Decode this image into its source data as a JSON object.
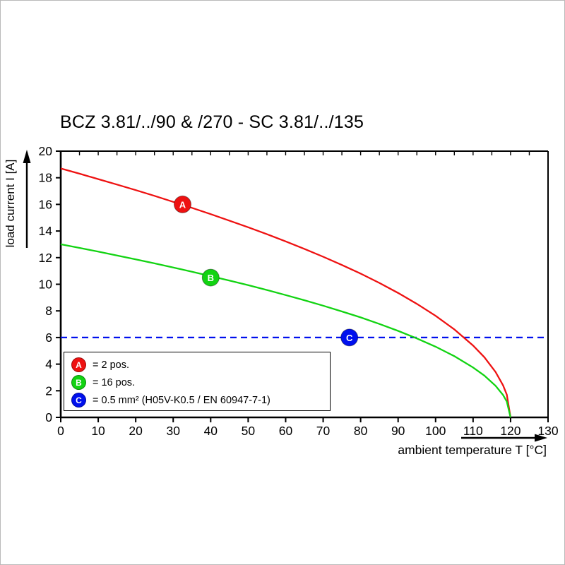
{
  "title": "BCZ 3.81/../90 & /270 - SC 3.81/../135",
  "chart_data": {
    "type": "line",
    "title": "BCZ 3.81/../90 & /270 - SC 3.81/../135",
    "xlabel": "ambient temperature T [°C]",
    "ylabel": "load current I [A]",
    "xlim": [
      0,
      130
    ],
    "ylim": [
      0,
      20
    ],
    "xticks": [
      0,
      10,
      20,
      30,
      40,
      50,
      60,
      70,
      80,
      90,
      100,
      110,
      120,
      130
    ],
    "yticks": [
      0,
      2,
      4,
      6,
      8,
      10,
      12,
      14,
      16,
      18,
      20
    ],
    "top_minor_tick_step": 5,
    "grid": false,
    "legend_position": "bottom-left-inside",
    "axis_color": "#000000",
    "series": [
      {
        "name": "A",
        "label": "= 2 pos.",
        "color": "#ee1111",
        "style": "solid",
        "marker": {
          "x": 32.5,
          "y": 16
        },
        "points": [
          [
            0,
            18.7
          ],
          [
            5,
            18.31
          ],
          [
            10,
            17.9
          ],
          [
            15,
            17.49
          ],
          [
            20,
            17.07
          ],
          [
            25,
            16.64
          ],
          [
            30,
            16.19
          ],
          [
            35,
            15.74
          ],
          [
            40,
            15.27
          ],
          [
            45,
            14.78
          ],
          [
            50,
            14.28
          ],
          [
            55,
            13.76
          ],
          [
            60,
            13.22
          ],
          [
            65,
            12.66
          ],
          [
            70,
            12.07
          ],
          [
            75,
            11.45
          ],
          [
            80,
            10.8
          ],
          [
            85,
            10.1
          ],
          [
            90,
            9.35
          ],
          [
            95,
            8.53
          ],
          [
            100,
            7.63
          ],
          [
            105,
            6.61
          ],
          [
            110,
            5.4
          ],
          [
            113,
            4.52
          ],
          [
            116,
            3.41
          ],
          [
            118,
            2.41
          ],
          [
            119,
            1.71
          ],
          [
            120,
            0
          ]
        ]
      },
      {
        "name": "B",
        "label": "= 16 pos.",
        "color": "#12d312",
        "style": "solid",
        "marker": {
          "x": 40,
          "y": 10.5
        },
        "points": [
          [
            0,
            13
          ],
          [
            5,
            12.73
          ],
          [
            10,
            12.45
          ],
          [
            15,
            12.16
          ],
          [
            20,
            11.87
          ],
          [
            25,
            11.57
          ],
          [
            30,
            11.26
          ],
          [
            35,
            10.94
          ],
          [
            40,
            10.61
          ],
          [
            45,
            10.28
          ],
          [
            50,
            9.93
          ],
          [
            55,
            9.57
          ],
          [
            60,
            9.19
          ],
          [
            65,
            8.8
          ],
          [
            70,
            8.39
          ],
          [
            75,
            7.96
          ],
          [
            80,
            7.51
          ],
          [
            85,
            7.02
          ],
          [
            90,
            6.5
          ],
          [
            95,
            5.93
          ],
          [
            100,
            5.31
          ],
          [
            105,
            4.6
          ],
          [
            110,
            3.75
          ],
          [
            113,
            3.14
          ],
          [
            116,
            2.37
          ],
          [
            118,
            1.68
          ],
          [
            119,
            1.19
          ],
          [
            120,
            0
          ]
        ]
      },
      {
        "name": "C",
        "label": "= 0.5 mm² (H05V-K0.5 / EN 60947-7-1)",
        "color": "#0010ee",
        "style": "dashed",
        "marker": {
          "x": 77,
          "y": 6
        },
        "points": [
          [
            0,
            6
          ],
          [
            130,
            6
          ]
        ]
      }
    ]
  }
}
